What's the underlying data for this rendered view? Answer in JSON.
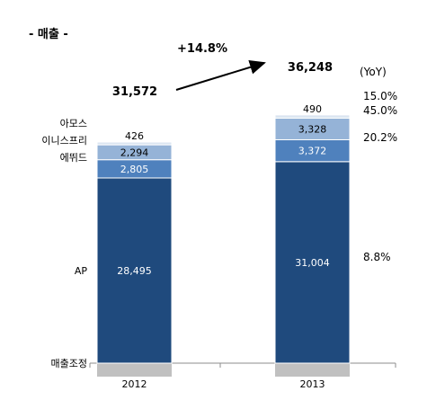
{
  "title": "- 매출 -",
  "growth_label": "+14.8%",
  "yoy_header": "(YoY)",
  "chart_data": {
    "type": "bar",
    "stacked": true,
    "categories": [
      "2012",
      "2013"
    ],
    "totals": [
      "31,572",
      "36,248"
    ],
    "series": [
      {
        "name": "매출조정",
        "values": [
          null,
          null
        ],
        "color": "#c0c0c0"
      },
      {
        "name": "AP",
        "values": [
          28495,
          31004
        ],
        "labels": [
          "28,495",
          "31,004"
        ],
        "yoy": "8.8%",
        "color": "#1f4a7d"
      },
      {
        "name": "에뛰드",
        "values": [
          2805,
          3372
        ],
        "labels": [
          "2,805",
          "3,372"
        ],
        "yoy": "20.2%",
        "color": "#4f81bd"
      },
      {
        "name": "이니스프리",
        "values": [
          2294,
          3328
        ],
        "labels": [
          "2,294",
          "3,328"
        ],
        "yoy": "45.0%",
        "color": "#95b3d7"
      },
      {
        "name": "아모스",
        "values": [
          426,
          490
        ],
        "labels": [
          "426",
          "490"
        ],
        "yoy": "15.0%",
        "color": "#dbe5f1"
      }
    ]
  }
}
